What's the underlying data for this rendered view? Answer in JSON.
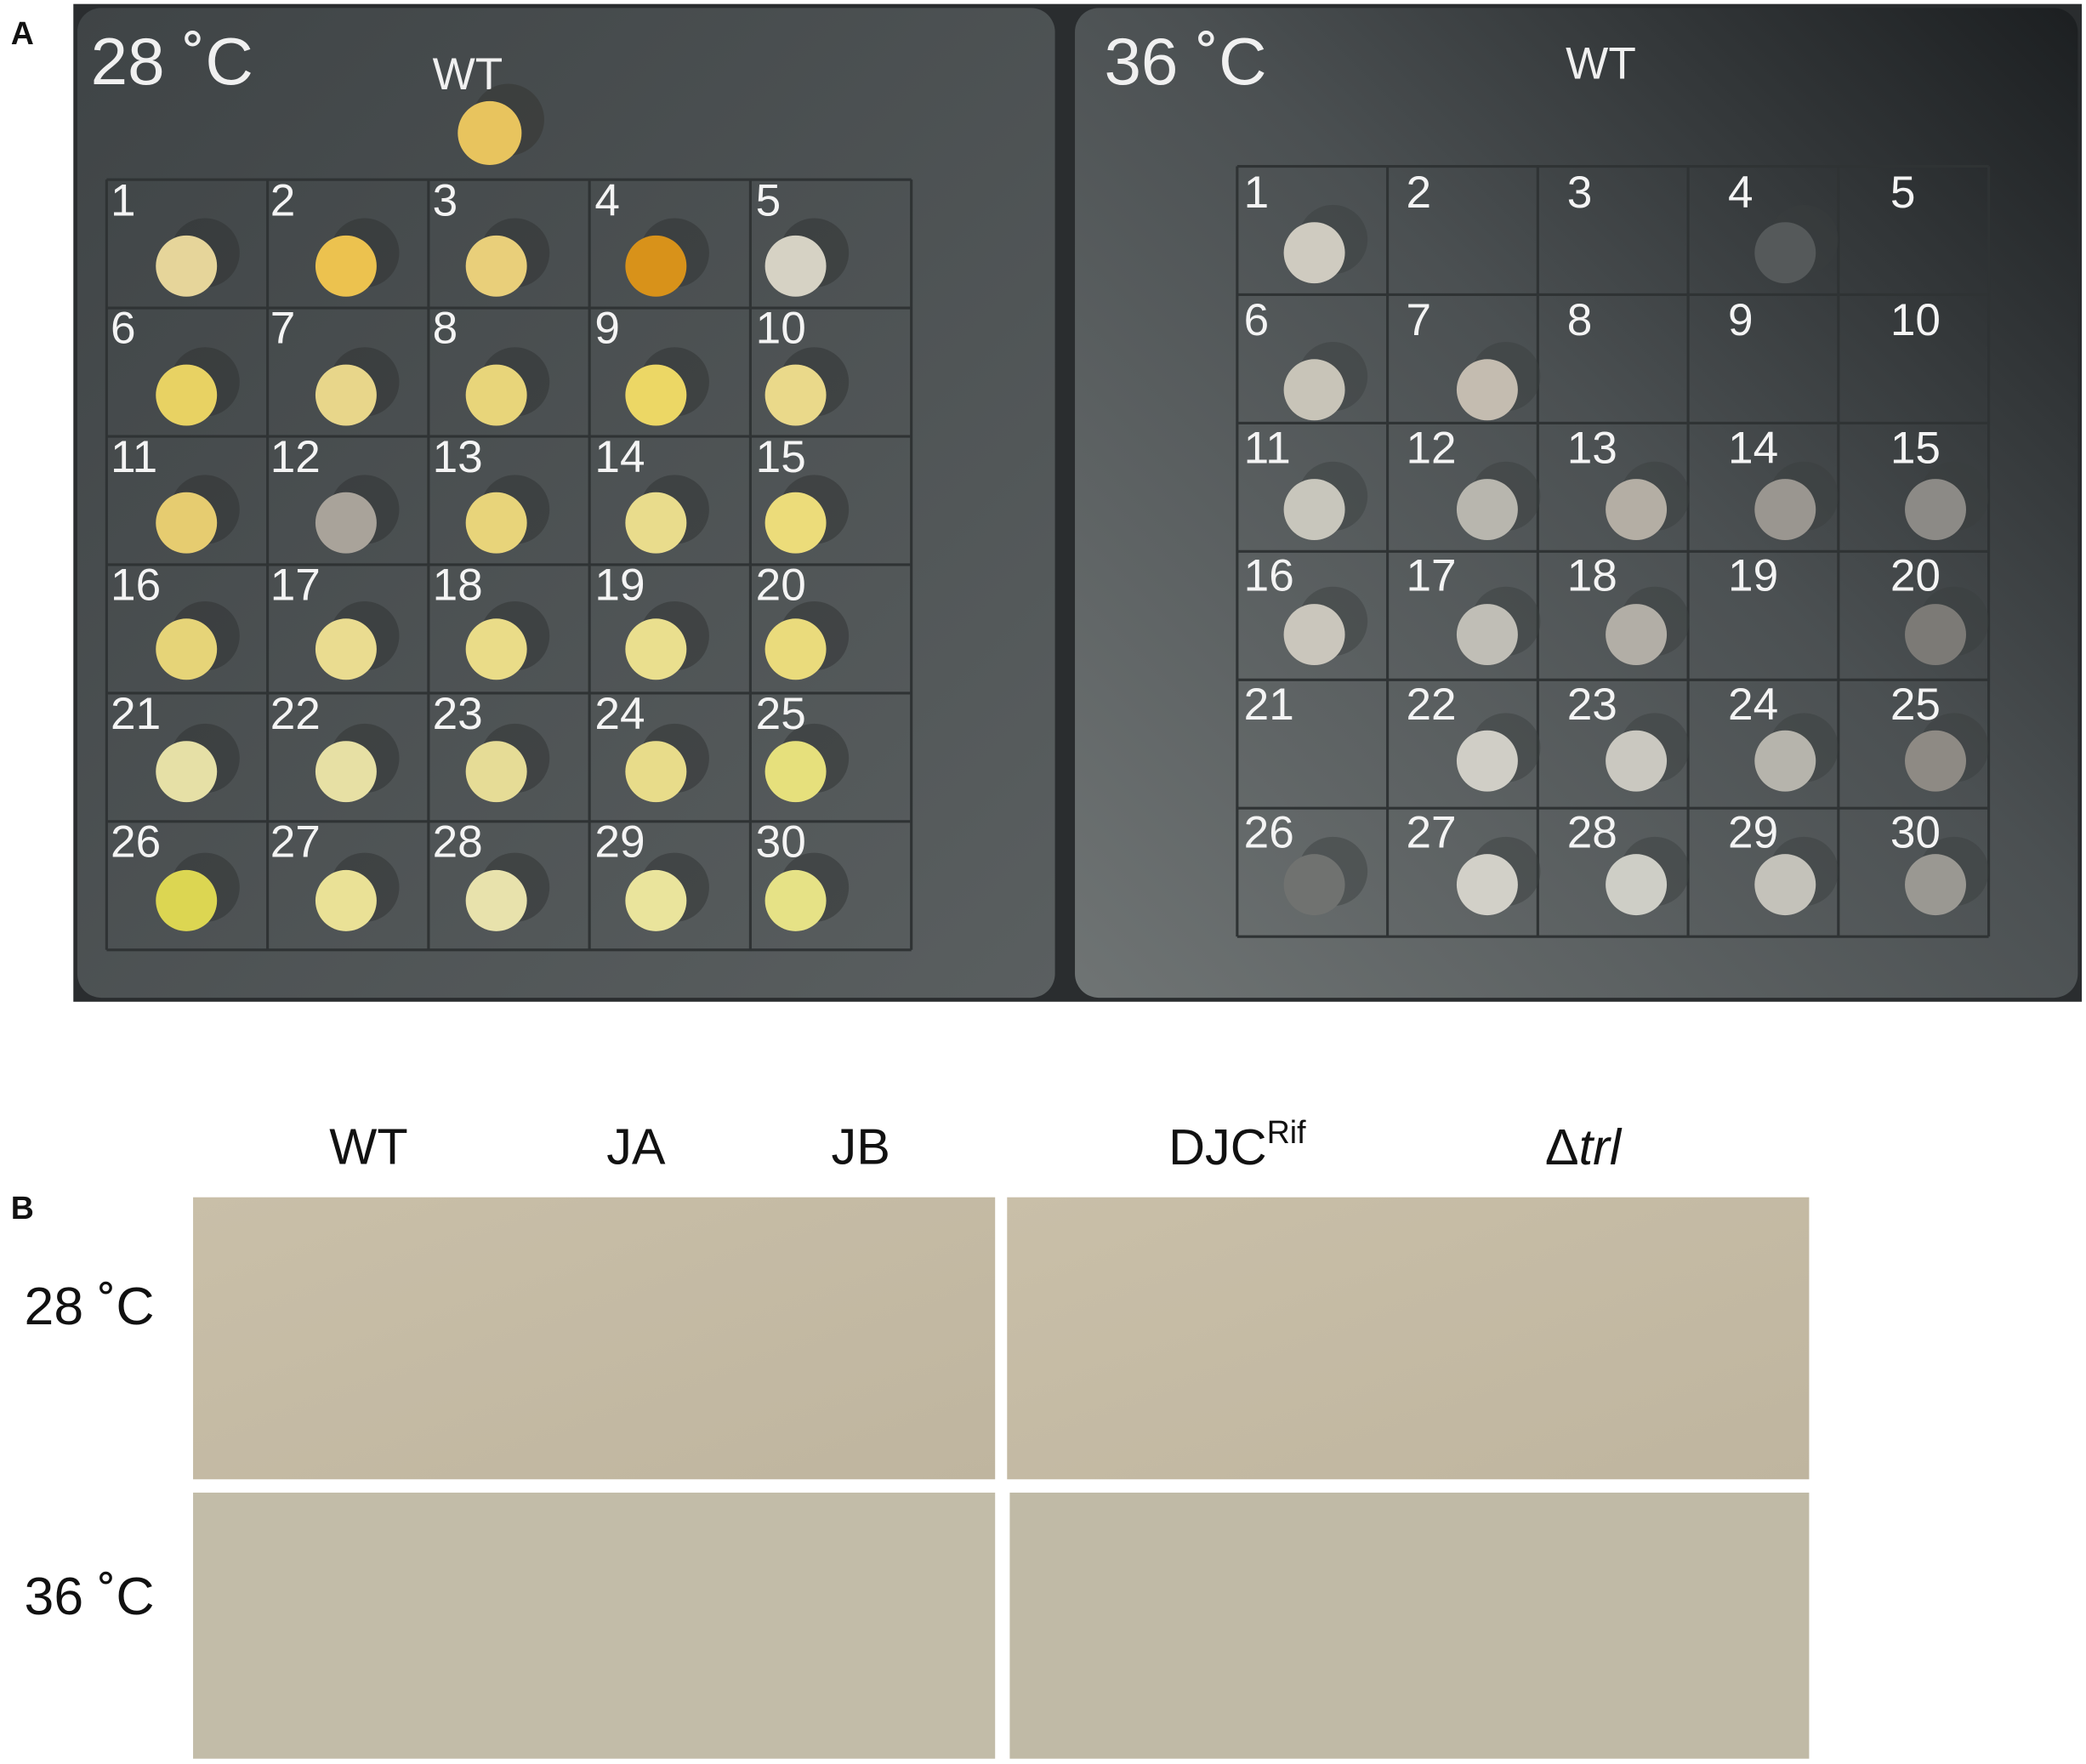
{
  "panel_a": {
    "label": "A",
    "plates": [
      {
        "temperature": "28 ˚C",
        "control": "WT",
        "spot_labels": [
          "1",
          "2",
          "3",
          "4",
          "5",
          "6",
          "7",
          "8",
          "9",
          "10",
          "11",
          "12",
          "13",
          "14",
          "15",
          "16",
          "17",
          "18",
          "19",
          "20",
          "21",
          "22",
          "23",
          "24",
          "25",
          "26",
          "27",
          "28",
          "29",
          "30"
        ]
      },
      {
        "temperature": "36 ˚C",
        "control": "WT",
        "spot_labels": [
          "1",
          "2",
          "3",
          "4",
          "5",
          "6",
          "7",
          "8",
          "9",
          "10",
          "11",
          "12",
          "13",
          "14",
          "15",
          "16",
          "17",
          "18",
          "19",
          "20",
          "21",
          "22",
          "23",
          "24",
          "25",
          "26",
          "27",
          "28",
          "29",
          "30"
        ]
      }
    ]
  },
  "panel_b": {
    "label": "B",
    "columns": [
      "WT",
      "JA",
      "JB",
      {
        "text": "DJC",
        "superscript": "Rif"
      },
      {
        "prefix": "Δ",
        "italic": "trl"
      }
    ],
    "rows": [
      "28 ˚C",
      "36 ˚C"
    ]
  }
}
